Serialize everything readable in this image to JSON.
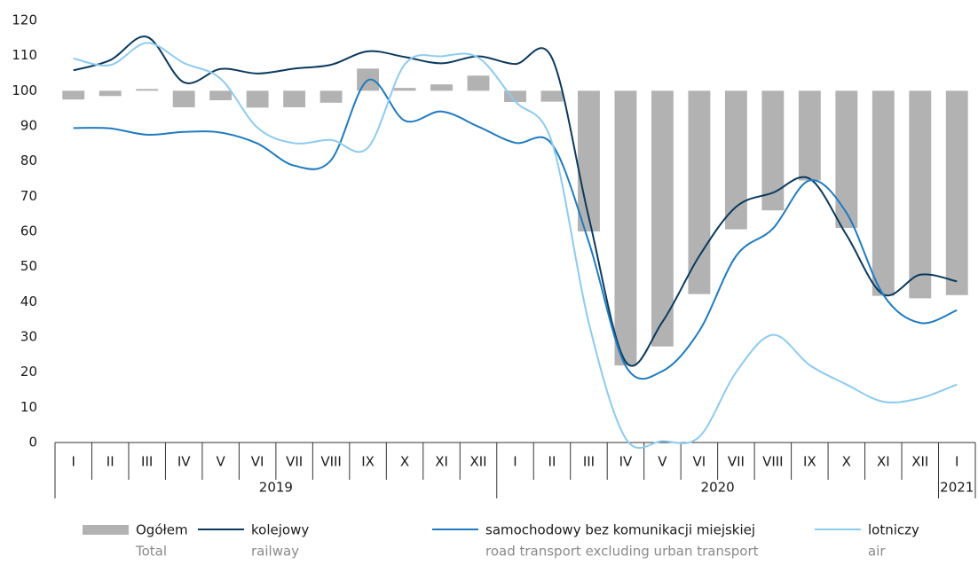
{
  "chart_data": {
    "type": "combo",
    "categories": [
      "I",
      "II",
      "III",
      "IV",
      "V",
      "VI",
      "VII",
      "VIII",
      "IX",
      "X",
      "XI",
      "XII",
      "I",
      "II",
      "III",
      "IV",
      "V",
      "VI",
      "VII",
      "VIII",
      "IX",
      "X",
      "XI",
      "XII",
      "I"
    ],
    "groups": [
      {
        "label": "2019",
        "start": 0,
        "end": 11
      },
      {
        "label": "2020",
        "start": 12,
        "end": 23
      },
      {
        "label": "2021",
        "start": 24,
        "end": 24
      }
    ],
    "bar_base": 100,
    "ylim": [
      0,
      120
    ],
    "yticks": [
      0,
      10,
      20,
      30,
      40,
      50,
      60,
      70,
      80,
      90,
      100,
      110,
      120
    ],
    "grid": false,
    "series": [
      {
        "name": "Ogółem",
        "name_en": "Total",
        "type": "bar",
        "color": "#b2b2b2",
        "values": [
          97.5,
          98.5,
          100.5,
          95.3,
          97.3,
          95.2,
          95.3,
          96.6,
          106.3,
          100.8,
          101.8,
          104.3,
          96.8,
          96.9,
          60,
          21.9,
          27.3,
          42.2,
          60.6,
          66.0,
          74.5,
          61,
          41.7,
          41.0,
          41.9
        ]
      },
      {
        "name": "kolejowy",
        "name_en": "railway",
        "type": "line",
        "color": "#0b3a5e",
        "values": [
          105.8,
          108.7,
          115.3,
          102.4,
          106.2,
          104.9,
          106.3,
          107.4,
          111.2,
          109.6,
          107.8,
          109.8,
          107.6,
          109.3,
          64,
          23,
          34.3,
          53,
          67,
          71,
          75,
          59,
          42.1,
          47.7,
          45.8
        ]
      },
      {
        "name": "samochodowy bez komunikacji miejskiej",
        "name_en": "road transport excluding urban transport",
        "type": "line",
        "color": "#1f7bc0",
        "values": [
          89.4,
          89.3,
          87.5,
          88.3,
          88.1,
          85.0,
          78.7,
          80.3,
          103.0,
          91.5,
          94.1,
          89.8,
          85.2,
          84.8,
          57,
          21.8,
          20.3,
          31.7,
          53.0,
          60.8,
          74.5,
          65.3,
          42.0,
          34.0,
          37.6
        ]
      },
      {
        "name": "lotniczy",
        "name_en": "air",
        "type": "line",
        "color": "#8ccbf0",
        "values": [
          109.2,
          107.3,
          113.6,
          107.9,
          103.4,
          89.5,
          85.1,
          86.0,
          83.8,
          107.5,
          109.8,
          109.4,
          97,
          85.3,
          34,
          1.2,
          0.4,
          1.6,
          20,
          30.6,
          22,
          16.5,
          11.6,
          12.6,
          16.5
        ]
      }
    ]
  }
}
